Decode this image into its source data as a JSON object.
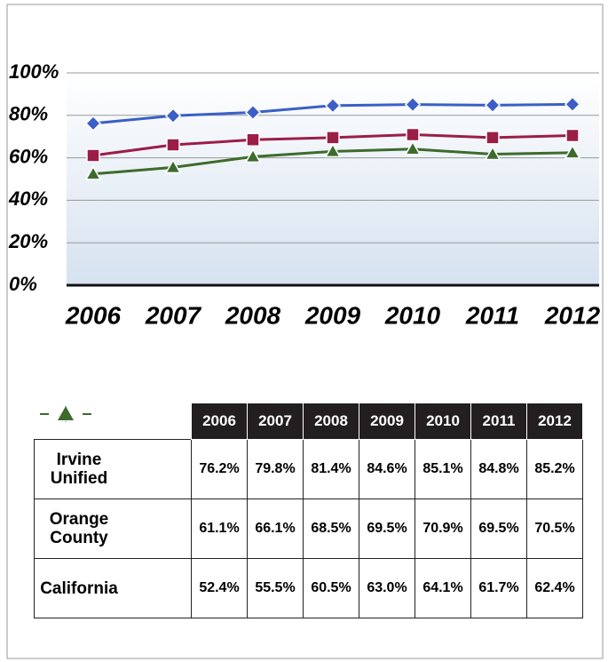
{
  "chart_data": {
    "type": "line",
    "categories": [
      "2006",
      "2007",
      "2008",
      "2009",
      "2010",
      "2011",
      "2012"
    ],
    "series": [
      {
        "name": "Irvine Unified",
        "color": "#3b5fc6",
        "marker": "diamond",
        "values": [
          76.2,
          79.8,
          81.4,
          84.6,
          85.1,
          84.8,
          85.2
        ],
        "value_labels": [
          "76.2%",
          "79.8%",
          "81.4%",
          "84.6%",
          "85.1%",
          "84.8%",
          "85.2%"
        ]
      },
      {
        "name": "Orange County",
        "color": "#9b1e47",
        "marker": "square",
        "values": [
          61.1,
          66.1,
          68.5,
          69.5,
          70.9,
          69.5,
          70.5
        ],
        "value_labels": [
          "61.1%",
          "66.1%",
          "68.5%",
          "69.5%",
          "70.9%",
          "69.5%",
          "70.5%"
        ]
      },
      {
        "name": "California",
        "color": "#3d6b2c",
        "marker": "triangle",
        "values": [
          52.4,
          55.5,
          60.5,
          63.0,
          64.1,
          61.7,
          62.4
        ],
        "value_labels": [
          "52.4%",
          "55.5%",
          "60.5%",
          "63.0%",
          "64.1%",
          "61.7%",
          "62.4%"
        ]
      }
    ],
    "ylim": [
      0,
      100
    ],
    "yticks": [
      {
        "value": 0,
        "label": "0%"
      },
      {
        "value": 20,
        "label": "20%"
      },
      {
        "value": 40,
        "label": "40%"
      },
      {
        "value": 60,
        "label": "60%"
      },
      {
        "value": 80,
        "label": "80%"
      },
      {
        "value": 100,
        "label": "100%"
      }
    ],
    "grid": true
  }
}
